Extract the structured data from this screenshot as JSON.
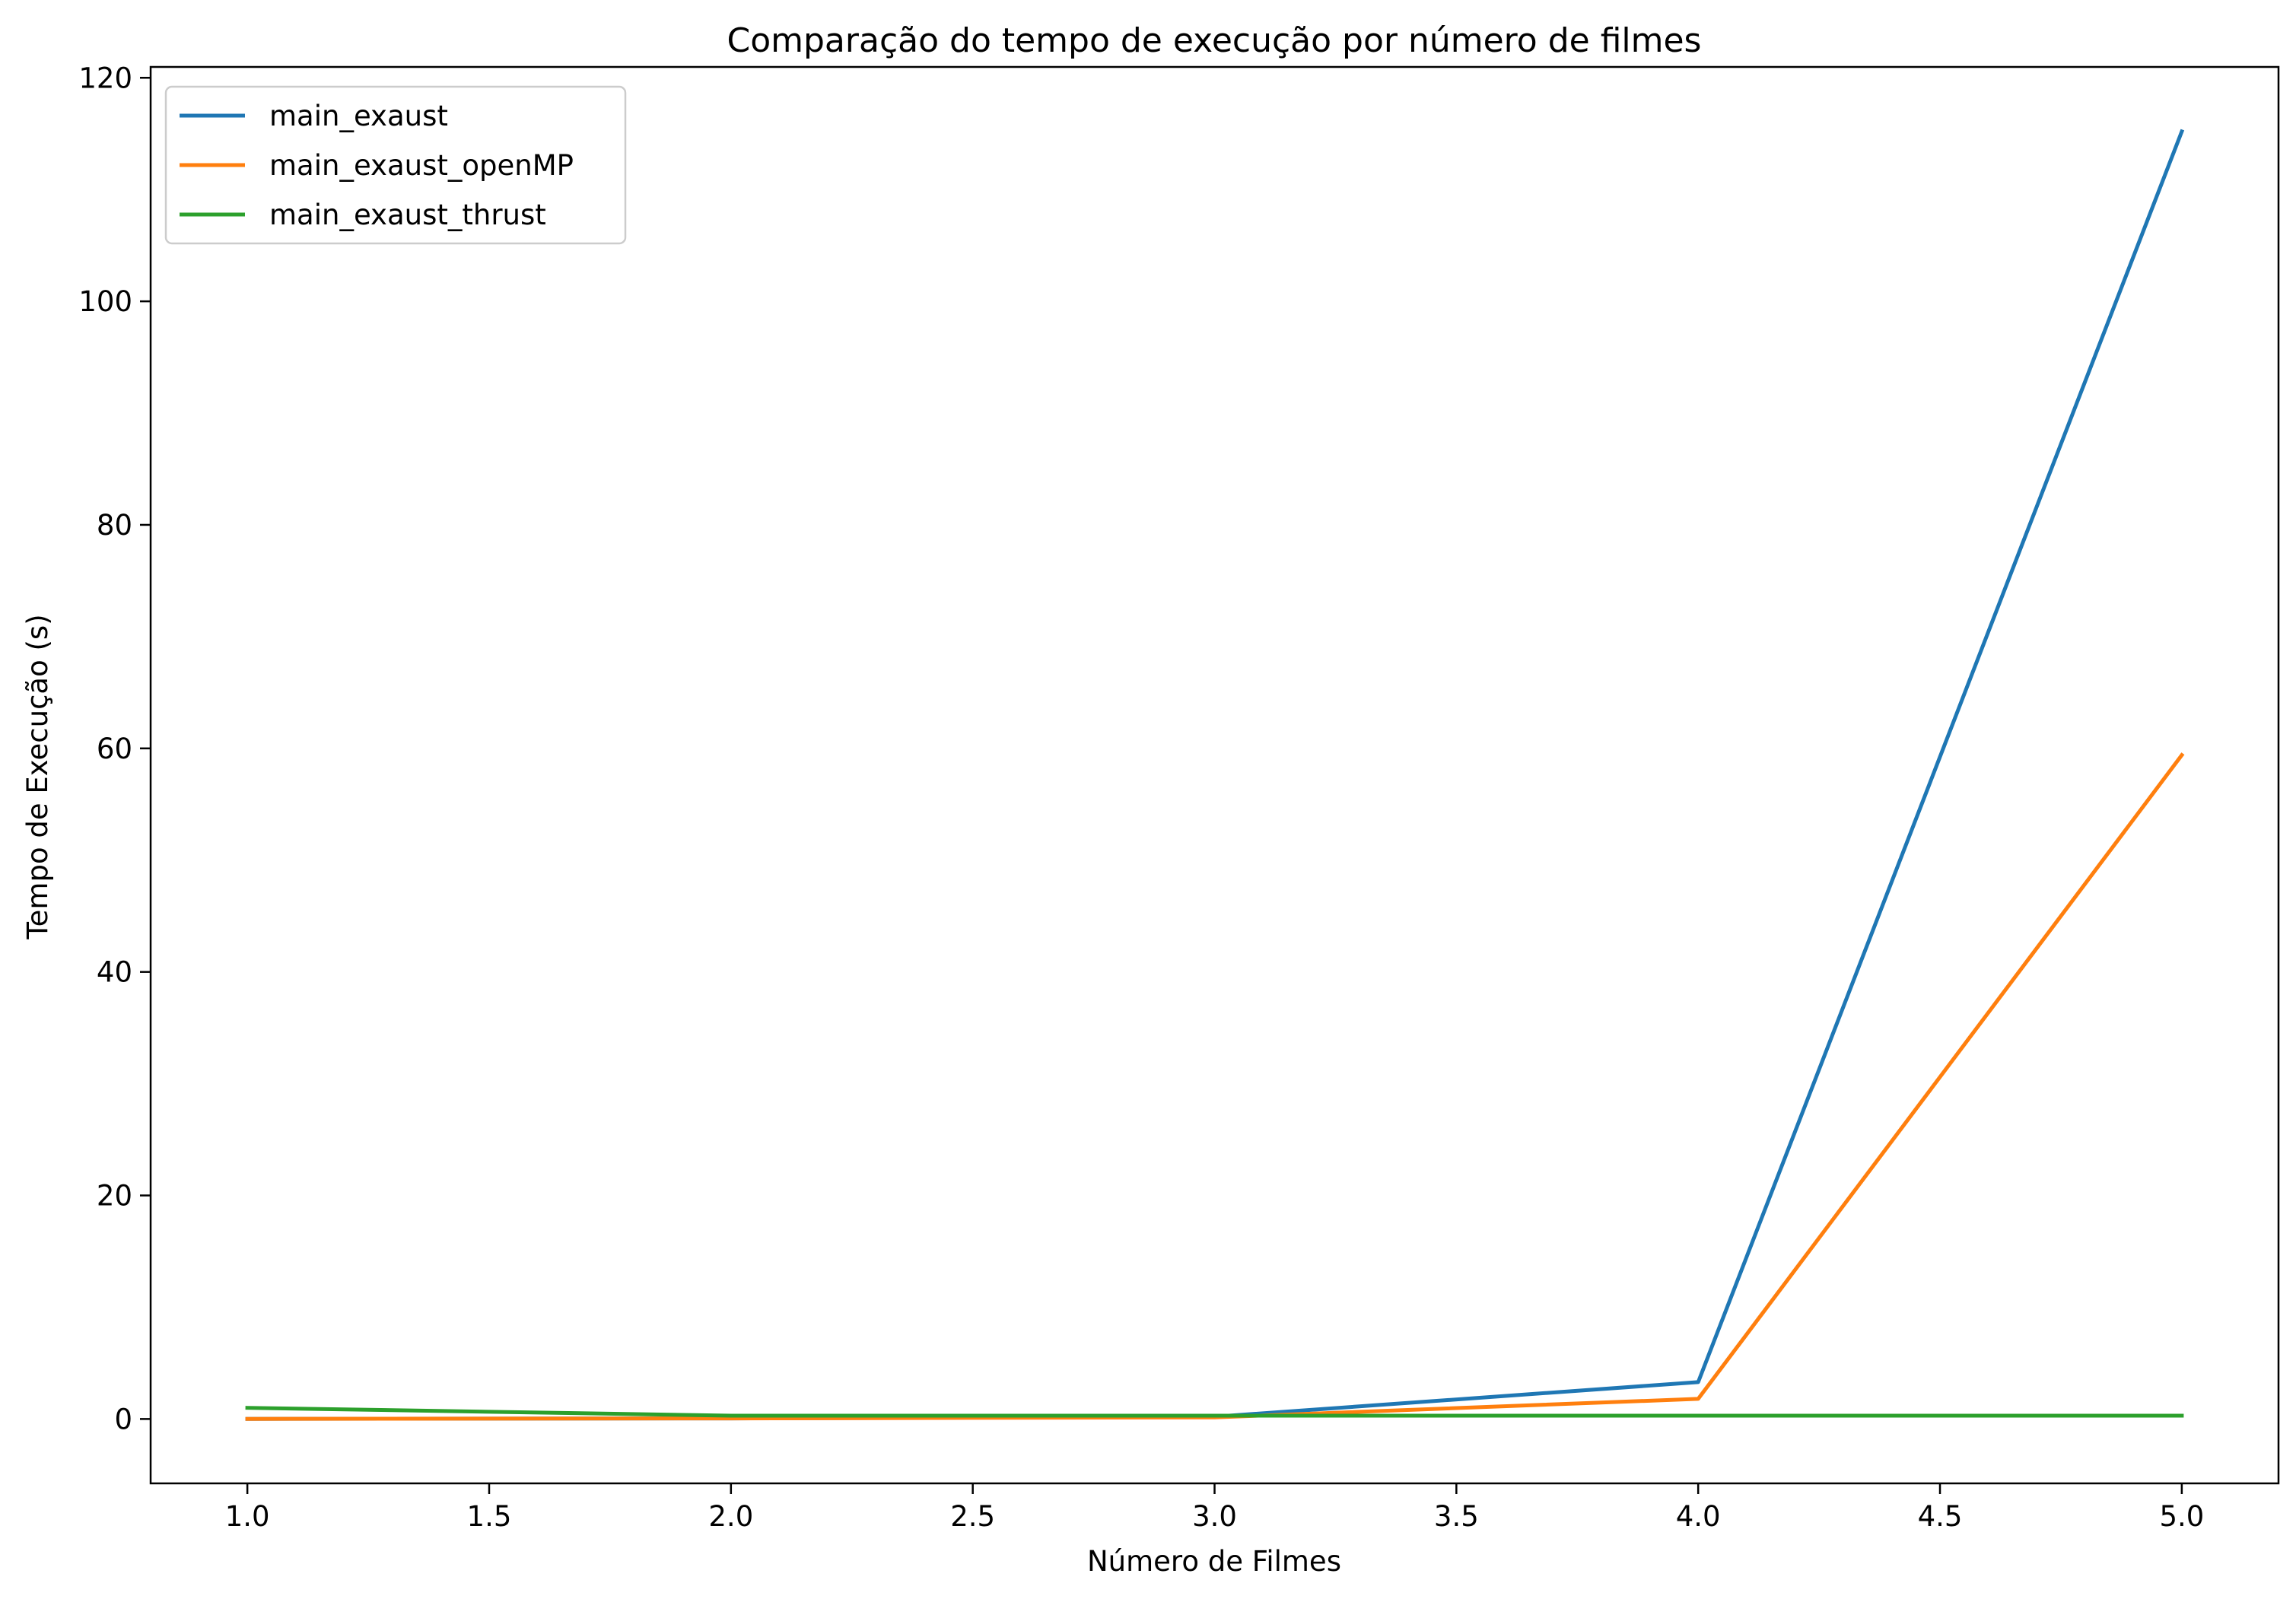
{
  "chart_data": {
    "type": "line",
    "title": "Comparação do tempo de execução por número de filmes",
    "xlabel": "Número de Filmes",
    "ylabel": "Tempo de Execução (s)",
    "x": [
      1.0,
      2.0,
      3.0,
      4.0,
      5.0
    ],
    "series": [
      {
        "name": "main_exaust",
        "color": "#1f77b4",
        "values": [
          0.01,
          0.05,
          0.2,
          3.3,
          115.2
        ]
      },
      {
        "name": "main_exaust_openMP",
        "color": "#ff7f0e",
        "values": [
          0.01,
          0.05,
          0.15,
          1.8,
          59.4
        ]
      },
      {
        "name": "main_exaust_thrust",
        "color": "#2ca02c",
        "values": [
          1.0,
          0.3,
          0.3,
          0.3,
          0.3
        ]
      }
    ],
    "xlim": [
      0.8,
      5.2
    ],
    "ylim": [
      -5.76,
      120.97
    ],
    "xticks": [
      1.0,
      1.5,
      2.0,
      2.5,
      3.0,
      3.5,
      4.0,
      4.5,
      5.0
    ],
    "xtick_labels": [
      "1.0",
      "1.5",
      "2.0",
      "2.5",
      "3.0",
      "3.5",
      "4.0",
      "4.5",
      "5.0"
    ],
    "yticks": [
      0,
      20,
      40,
      60,
      80,
      100,
      120
    ],
    "ytick_labels": [
      "0",
      "20",
      "40",
      "60",
      "80",
      "100",
      "120"
    ],
    "grid": false,
    "legend_position": "top-left"
  }
}
